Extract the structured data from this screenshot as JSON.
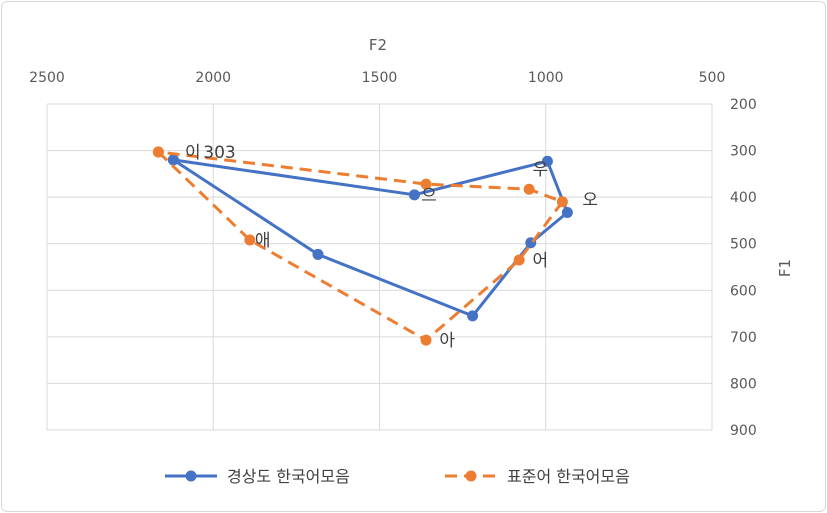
{
  "chart_data": {
    "type": "line",
    "title": "",
    "xlabel": "F2",
    "ylabel": "F1",
    "x_axis": {
      "position": "top",
      "reversed": true,
      "min": 500,
      "max": 2500,
      "step": 500
    },
    "y_axis": {
      "position": "right",
      "reversed": true,
      "min": 200,
      "max": 900,
      "step": 100
    },
    "x_ticks": [
      "2500",
      "2000",
      "1500",
      "1000",
      "500"
    ],
    "y_ticks": [
      "200",
      "300",
      "400",
      "500",
      "600",
      "700",
      "800",
      "900"
    ],
    "grid": true,
    "legend_position": "bottom",
    "series": [
      {
        "name": "경상도 한국어모음",
        "color": "#4472c4",
        "dash": "solid",
        "points": [
          {
            "x": 2120,
            "y": 320
          },
          {
            "x": 1685,
            "y": 523
          },
          {
            "x": 1220,
            "y": 655
          },
          {
            "x": 1045,
            "y": 498
          },
          {
            "x": 935,
            "y": 433
          },
          {
            "x": 995,
            "y": 323
          },
          {
            "x": 1395,
            "y": 395
          },
          {
            "x": 2120,
            "y": 320
          }
        ]
      },
      {
        "name": "표준어 한국어모음",
        "color": "#ed7d31",
        "dash": "dashed",
        "points": [
          {
            "x": 2165,
            "y": 303
          },
          {
            "x": 1890,
            "y": 492
          },
          {
            "x": 1360,
            "y": 707
          },
          {
            "x": 1080,
            "y": 535
          },
          {
            "x": 950,
            "y": 410
          },
          {
            "x": 1050,
            "y": 383
          },
          {
            "x": 1360,
            "y": 372
          },
          {
            "x": 2165,
            "y": 303
          }
        ]
      }
    ],
    "point_labels": [
      {
        "text": "애",
        "x": 1875,
        "y": 492
      },
      {
        "text": "아",
        "x": 1320,
        "y": 707
      },
      {
        "text": "어",
        "x": 1040,
        "y": 535
      },
      {
        "text": "오",
        "x": 890,
        "y": 405
      },
      {
        "text": "우",
        "x": 1040,
        "y": 340
      },
      {
        "text": "으",
        "x": 1375,
        "y": 395
      },
      {
        "text": "이",
        "x": 2085,
        "y": 303
      },
      {
        "text": "303",
        "x": 2030,
        "y": 303
      }
    ]
  }
}
